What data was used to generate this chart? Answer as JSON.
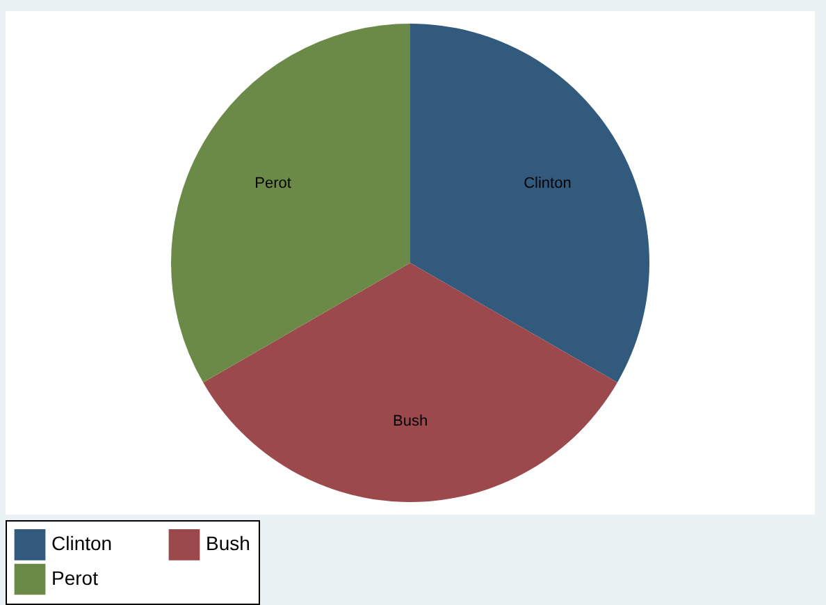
{
  "chart_data": {
    "type": "pie",
    "categories": [
      "Clinton",
      "Bush",
      "Perot"
    ],
    "values": [
      33.33,
      33.33,
      33.34
    ],
    "colors": [
      "#315a7d",
      "#9c494e",
      "#6b8a47"
    ],
    "legend": "bottom"
  }
}
